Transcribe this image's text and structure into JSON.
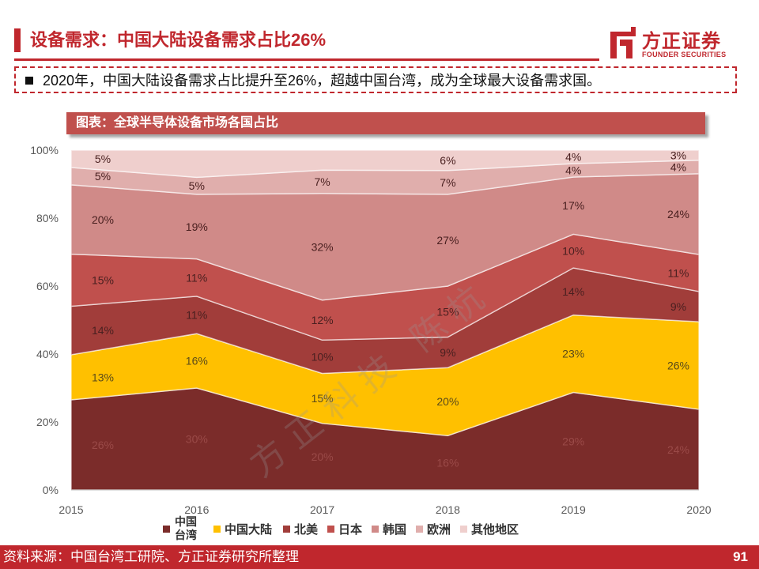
{
  "slide": {
    "title": "设备需求：中国大陆设备需求占比26%",
    "summary": "2020年，中国大陆设备需求占比提升至26%，超越中国台湾，成为全球最大设备需求国。",
    "figure_label": "图表：全球半导体设备市场各国占比",
    "source": "资料来源：中国台湾工研院、方正证券研究所整理",
    "page_number": "91",
    "watermark": "方正科技 陈杭"
  },
  "logo": {
    "name_cn": "方正证券",
    "name_en": "FOUNDER SECURITIES"
  },
  "colors": {
    "brand_red": "#c0272d",
    "figure_bar": "#c0504d"
  },
  "chart_data": {
    "type": "area",
    "stacked": "percent",
    "x": [
      "2015",
      "2016",
      "2017",
      "2018",
      "2019",
      "2020"
    ],
    "ylim": [
      0,
      100
    ],
    "yticks": [
      "0%",
      "20%",
      "40%",
      "60%",
      "80%",
      "100%"
    ],
    "legend_position": "bottom",
    "series": [
      {
        "name": "中国台湾",
        "color": "#7b2c2a",
        "values": [
          26,
          30,
          20,
          16,
          29,
          24
        ],
        "labels": [
          "26%",
          "30%",
          "20%",
          "16%",
          "29%",
          "24%"
        ]
      },
      {
        "name": "中国大陆",
        "color": "#ffc000",
        "values": [
          13,
          16,
          15,
          20,
          23,
          26
        ],
        "labels": [
          "13%",
          "16%",
          "15%",
          "20%",
          "23%",
          "26%"
        ]
      },
      {
        "name": "北美",
        "color": "#a13d3a",
        "values": [
          14,
          11,
          10,
          9,
          14,
          9
        ],
        "labels": [
          "14%",
          "11%",
          "10%",
          "9%",
          "14%",
          "9%"
        ]
      },
      {
        "name": "日本",
        "color": "#c0504d",
        "values": [
          15,
          11,
          12,
          15,
          10,
          11
        ],
        "labels": [
          "15%",
          "11%",
          "12%",
          "15%",
          "10%",
          "11%"
        ]
      },
      {
        "name": "韩国",
        "color": "#d08a88",
        "values": [
          20,
          19,
          32,
          27,
          17,
          24
        ],
        "labels": [
          "20%",
          "19%",
          "32%",
          "27%",
          "17%",
          "24%"
        ]
      },
      {
        "name": "欧洲",
        "color": "#e0aeac",
        "values": [
          5,
          5,
          7,
          7,
          4,
          4
        ],
        "labels": [
          "5%",
          "5%",
          "7%",
          "7%",
          "4%",
          "4%"
        ]
      },
      {
        "name": "其他地区",
        "color": "#efcfcd",
        "values": [
          5,
          8,
          6,
          6,
          4,
          3
        ],
        "labels": [
          "5%",
          "",
          "",
          "6%",
          "4%",
          "3%"
        ]
      }
    ]
  }
}
